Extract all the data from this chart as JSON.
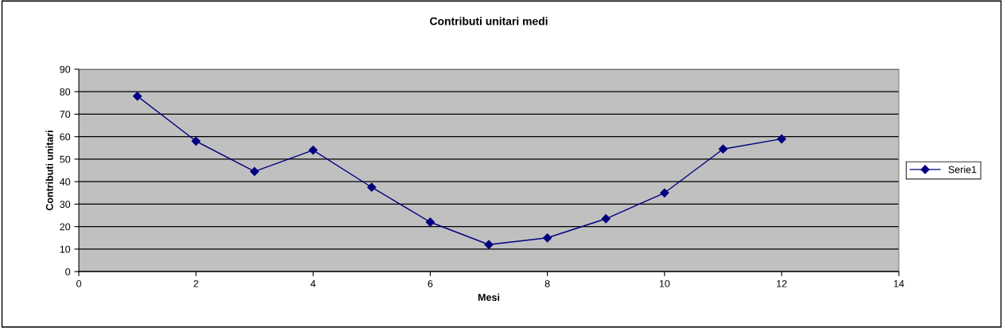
{
  "chart_data": {
    "type": "line",
    "title": "Contributi unitari medi",
    "xlabel": "Mesi",
    "ylabel": "Contributi unitari",
    "x": [
      1,
      2,
      3,
      4,
      5,
      6,
      7,
      8,
      9,
      10,
      11,
      12
    ],
    "series": [
      {
        "name": "Serie1",
        "color": "#000080",
        "values": [
          78,
          58,
          44.5,
          54,
          37.5,
          22,
          12,
          15,
          23.5,
          35,
          54.5,
          59
        ]
      }
    ],
    "xlim": [
      0,
      14
    ],
    "xticks": [
      0,
      2,
      4,
      6,
      8,
      10,
      12,
      14
    ],
    "ylim": [
      0,
      90
    ],
    "yticks": [
      0,
      10,
      20,
      30,
      40,
      50,
      60,
      70,
      80,
      90
    ],
    "grid": "y",
    "legend": "right",
    "marker": "diamond",
    "line_style": "solid"
  }
}
